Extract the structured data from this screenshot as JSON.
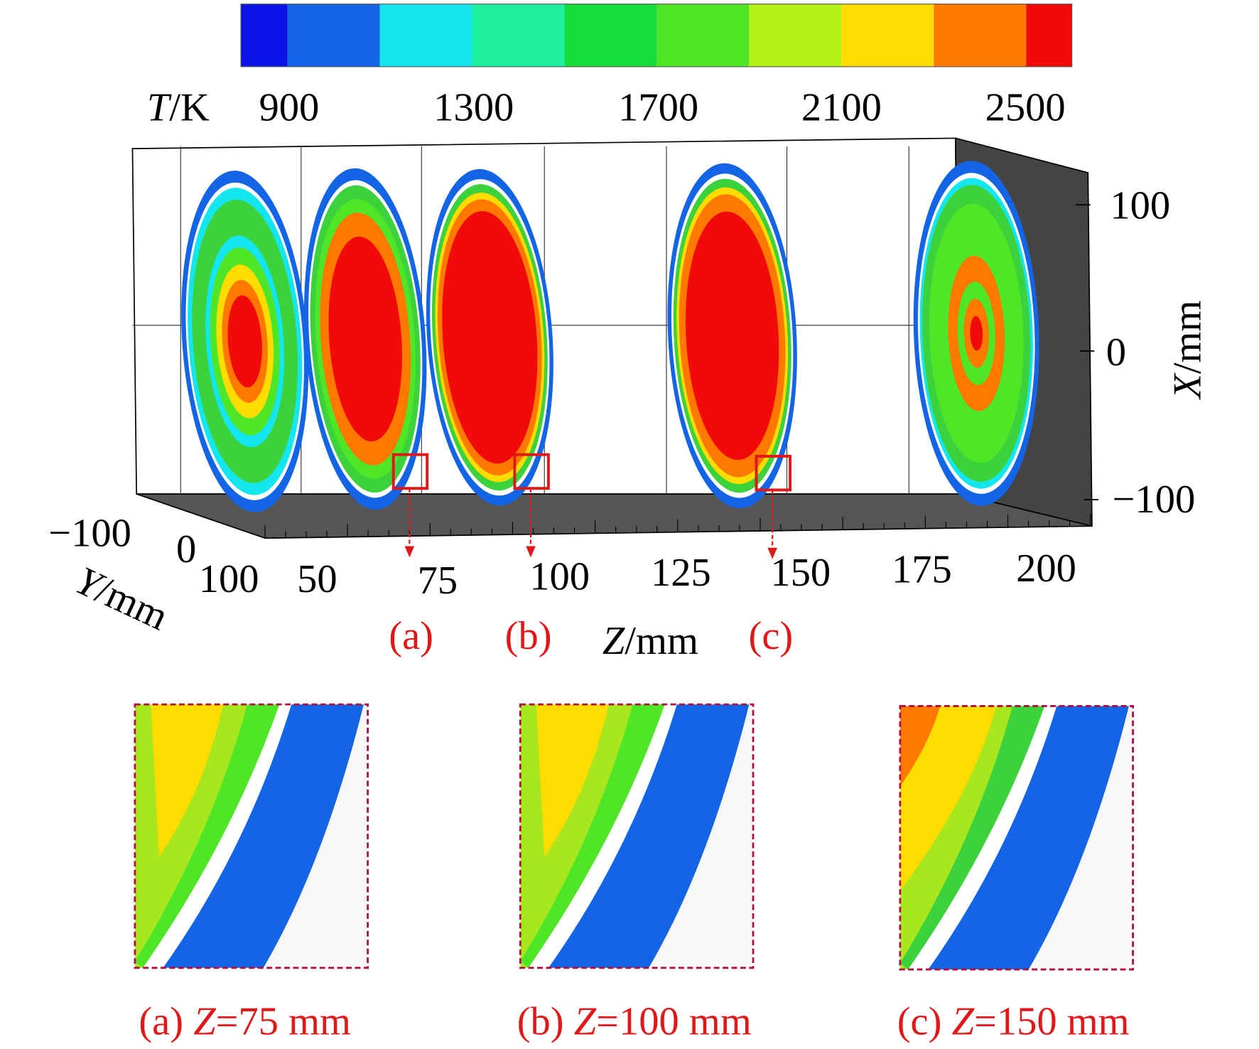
{
  "colorbar": {
    "label_symbol": "T",
    "label_unit": "/K",
    "ticks": [
      "900",
      "1300",
      "1700",
      "2100",
      "2500"
    ]
  },
  "x_axis": {
    "label_symbol": "X",
    "label_unit": "/mm",
    "ticks": [
      "100",
      "0",
      "−100"
    ]
  },
  "y_axis": {
    "label_symbol": "Y",
    "label_unit": "/mm",
    "ticks": [
      "−100",
      "0",
      "100"
    ]
  },
  "z_axis": {
    "label_symbol": "Z",
    "label_unit": "/mm",
    "ticks": [
      "50",
      "75",
      "100",
      "125",
      "150",
      "175",
      "200"
    ]
  },
  "markers": [
    "(a)",
    "(b)",
    "(c)"
  ],
  "captions": [
    {
      "tag": "(a) ",
      "symbol": "Z",
      "rest": "=75 mm"
    },
    {
      "tag": "(b) ",
      "symbol": "Z",
      "rest": "=100 mm"
    },
    {
      "tag": "(c) ",
      "symbol": "Z",
      "rest": "=150 mm"
    }
  ]
}
